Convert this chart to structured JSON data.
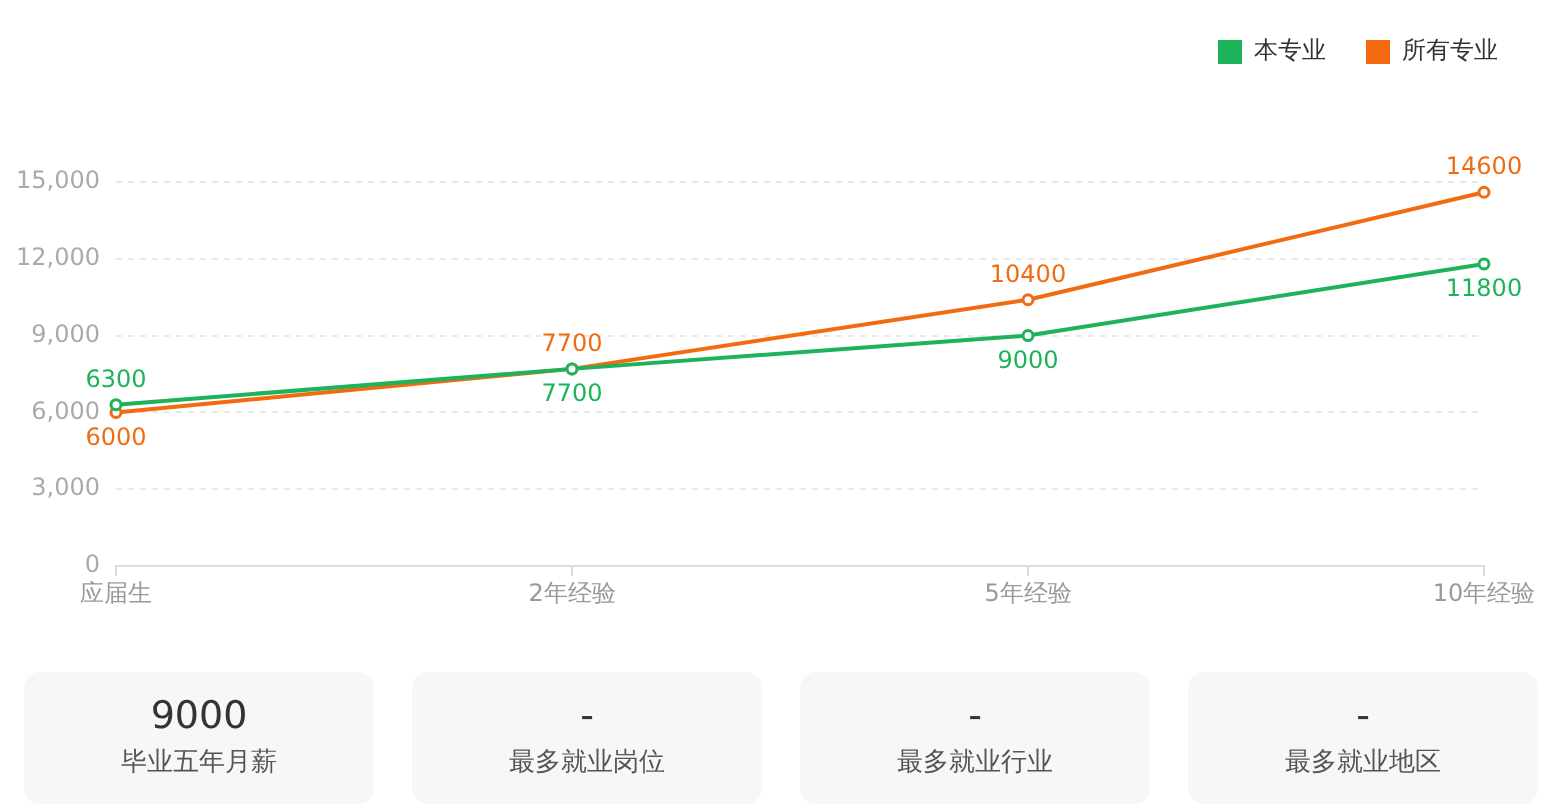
{
  "chart_data": [
    {
      "type": "line",
      "categories": [
        "应届生",
        "2年经验",
        "5年经验",
        "10年经验"
      ],
      "series": [
        {
          "name": "本专业",
          "color": "#1db35a",
          "values": [
            6300,
            7700,
            9000,
            11800
          ]
        },
        {
          "name": "所有专业",
          "color": "#f26b11",
          "values": [
            6000,
            7700,
            10400,
            14600
          ]
        }
      ],
      "ylim": [
        0,
        15000
      ],
      "yticks": [
        0,
        {
          "value": 3000,
          "label": "3,000"
        },
        {
          "value": 6000,
          "label": "6,000"
        },
        {
          "value": 9000,
          "label": "9,000"
        },
        {
          "value": 12000,
          "label": "12,000"
        },
        {
          "value": 15000,
          "label": "15,000"
        }
      ],
      "grid": "y",
      "legend": "top right",
      "marker": "circle",
      "line_style": "solid",
      "data_labels": true
    },
    {
      "type": "other",
      "annotations": [
        "9000",
        "毕业五年月薪",
        "-",
        "最多就业岗位",
        "-",
        "最多就业行业",
        "-",
        "最多就业地区"
      ]
    }
  ]
}
